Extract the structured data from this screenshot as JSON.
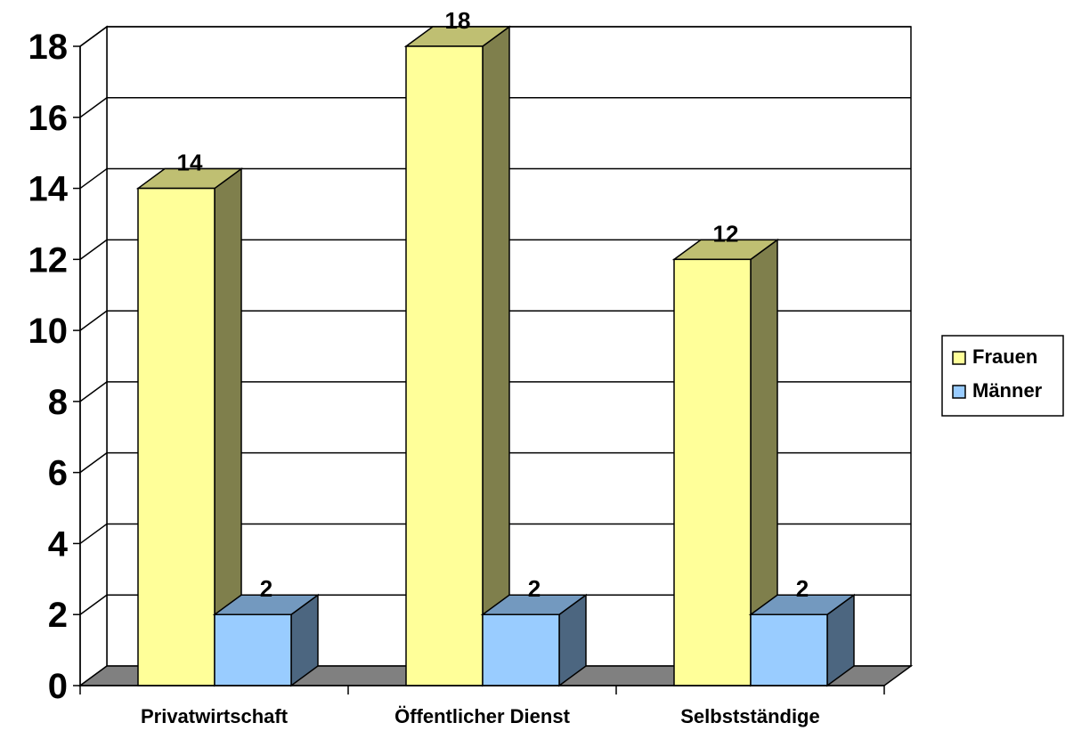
{
  "chart_data": {
    "type": "bar",
    "categories": [
      "Privatwirtschaft",
      "Öffentlicher Dienst",
      "Selbstständige"
    ],
    "series": [
      {
        "name": "Frauen",
        "values": [
          14,
          18,
          12
        ],
        "color": "#FFFF99"
      },
      {
        "name": "Männer",
        "values": [
          2,
          2,
          2
        ],
        "color": "#99CCFF"
      }
    ],
    "ylim": [
      0,
      18
    ],
    "yticks": [
      0,
      2,
      4,
      6,
      8,
      10,
      12,
      14,
      16,
      18
    ],
    "grid": true,
    "three_d": true,
    "legend": {
      "position": "right",
      "items": [
        "Frauen",
        "Männer"
      ]
    },
    "data_labels": true,
    "title": "",
    "xlabel": "",
    "ylabel": "",
    "colors": {
      "frauen_side": "#7F7F4C",
      "frauen_top": "#BFBF72",
      "maenner_side": "#4C6680",
      "maenner_top": "#7399BF",
      "floor": "#808080"
    }
  }
}
